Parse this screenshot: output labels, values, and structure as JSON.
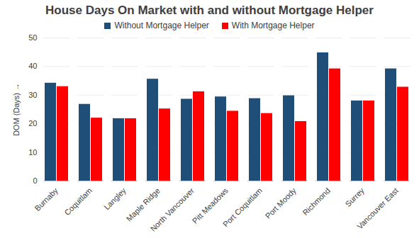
{
  "chart_data": {
    "type": "bar",
    "title": "House Days On Market with and without Mortgage Helper",
    "y_label": "DOM (Days)",
    "categories": [
      "Burnaby",
      "Coquitlam",
      "Langley",
      "Maple Ridge",
      "North Vancouver",
      "Pitt Meadows",
      "Port Coquitlam",
      "Port Moody",
      "Richmond",
      "Surrey",
      "Vancouver East"
    ],
    "series": [
      {
        "name": "Without Mortgage Helper",
        "color": "#1f4e79",
        "values": [
          34.2,
          26.8,
          21.8,
          35.6,
          28.6,
          29.4,
          28.8,
          29.8,
          44.8,
          28.0,
          39.2
        ]
      },
      {
        "name": "With Mortgage Helper",
        "color": "#ff0000",
        "values": [
          33.0,
          22.0,
          21.8,
          25.2,
          31.2,
          24.4,
          23.6,
          20.8,
          39.2,
          28.0,
          32.8
        ]
      }
    ],
    "ylim": [
      0,
      50
    ],
    "yticks": [
      0,
      10,
      20,
      30,
      40,
      50
    ],
    "grid": true,
    "legend": "top"
  }
}
